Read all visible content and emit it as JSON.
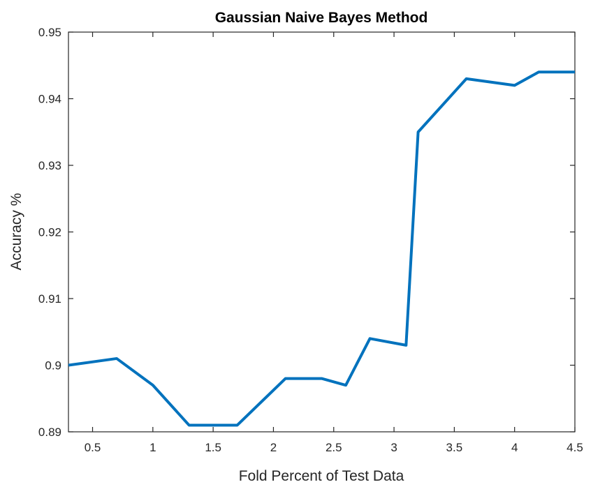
{
  "chart_data": {
    "type": "line",
    "title": "Gaussian Naive Bayes Method",
    "xlabel": "Fold Percent of Test Data",
    "ylabel": "Accuracy %",
    "xlim": [
      0.3,
      4.5
    ],
    "ylim": [
      0.89,
      0.95
    ],
    "xticks": [
      0.5,
      1,
      1.5,
      2,
      2.5,
      3,
      3.5,
      4,
      4.5
    ],
    "xtick_labels": [
      "0.5",
      "1",
      "1.5",
      "2",
      "2.5",
      "3",
      "3.5",
      "4",
      "4.5"
    ],
    "yticks": [
      0.89,
      0.9,
      0.91,
      0.92,
      0.93,
      0.94,
      0.95
    ],
    "ytick_labels": [
      "0.89",
      "0.9",
      "0.91",
      "0.92",
      "0.93",
      "0.94",
      "0.95"
    ],
    "grid": false,
    "series": [
      {
        "color": "#0072bd",
        "x": [
          0.3,
          0.7,
          1.0,
          1.3,
          1.5,
          1.7,
          2.1,
          2.4,
          2.6,
          2.8,
          3.1,
          3.2,
          3.6,
          4.0,
          4.2,
          4.5
        ],
        "y": [
          0.9,
          0.901,
          0.897,
          0.891,
          0.891,
          0.891,
          0.898,
          0.898,
          0.897,
          0.904,
          0.903,
          0.935,
          0.943,
          0.942,
          0.944,
          0.944
        ]
      }
    ],
    "colors": {
      "axis": "#262626",
      "line": "#0072bd",
      "background": "#ffffff"
    }
  }
}
